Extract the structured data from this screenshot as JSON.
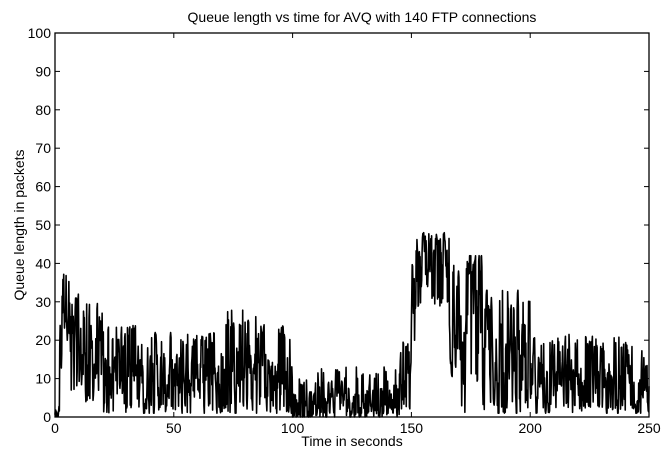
{
  "chart_data": {
    "type": "line",
    "title": "Queue length vs time for AVQ with 140 FTP connections",
    "xlabel": "Time in seconds",
    "ylabel": "Queue length in packets",
    "xlim": [
      0,
      250
    ],
    "ylim": [
      0,
      100
    ],
    "xticks": [
      0,
      50,
      100,
      150,
      200,
      250
    ],
    "yticks": [
      0,
      10,
      20,
      30,
      40,
      50,
      60,
      70,
      80,
      90,
      100
    ],
    "grid": false,
    "series": [
      {
        "color": "#000000",
        "segments": [
          {
            "x0": 0,
            "x1": 2,
            "min": 0,
            "max": 3,
            "mean": 1
          },
          {
            "x0": 2,
            "x1": 3,
            "min": 12,
            "max": 30,
            "mean": 20
          },
          {
            "x0": 3,
            "x1": 6,
            "min": 20,
            "max": 44,
            "mean": 32
          },
          {
            "x0": 6,
            "x1": 10,
            "min": 5,
            "max": 32,
            "mean": 18
          },
          {
            "x0": 10,
            "x1": 20,
            "min": 4,
            "max": 30,
            "mean": 15
          },
          {
            "x0": 20,
            "x1": 40,
            "min": 1,
            "max": 24,
            "mean": 11
          },
          {
            "x0": 40,
            "x1": 70,
            "min": 1,
            "max": 22,
            "mean": 10
          },
          {
            "x0": 70,
            "x1": 85,
            "min": 1,
            "max": 28,
            "mean": 11
          },
          {
            "x0": 85,
            "x1": 100,
            "min": 1,
            "max": 24,
            "mean": 10
          },
          {
            "x0": 100,
            "x1": 110,
            "min": 0,
            "max": 10,
            "mean": 3
          },
          {
            "x0": 110,
            "x1": 145,
            "min": 0,
            "max": 13,
            "mean": 5
          },
          {
            "x0": 145,
            "x1": 150,
            "min": 2,
            "max": 20,
            "mean": 9
          },
          {
            "x0": 150,
            "x1": 152,
            "min": 18,
            "max": 40,
            "mean": 28
          },
          {
            "x0": 152,
            "x1": 166,
            "min": 28,
            "max": 48,
            "mean": 40
          },
          {
            "x0": 166,
            "x1": 171,
            "min": 10,
            "max": 40,
            "mean": 26
          },
          {
            "x0": 171,
            "x1": 173,
            "min": 1,
            "max": 25,
            "mean": 10
          },
          {
            "x0": 173,
            "x1": 180,
            "min": 8,
            "max": 42,
            "mean": 28
          },
          {
            "x0": 180,
            "x1": 200,
            "min": 1,
            "max": 33,
            "mean": 14
          },
          {
            "x0": 200,
            "x1": 230,
            "min": 1,
            "max": 22,
            "mean": 9
          },
          {
            "x0": 230,
            "x1": 250,
            "min": 1,
            "max": 21,
            "mean": 8
          }
        ]
      }
    ]
  }
}
